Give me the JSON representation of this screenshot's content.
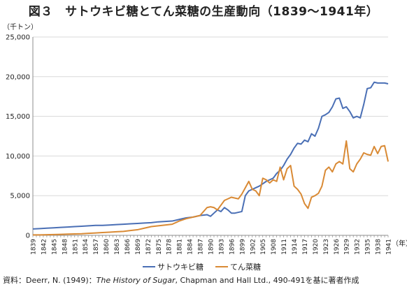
{
  "title": "図３　サトウキビ糖とてん菜糖の生産動向（1839～1941年）",
  "source": {
    "prefix": "資料：Deerr, N. (1949)：",
    "italic": "The History of Sugar",
    "suffix": ", Chapman and Hall Ltd., 490-491を基に著者作成"
  },
  "chart_data": {
    "type": "line",
    "ylabel": "（千トン）",
    "xlabel": "（年）",
    "ylim": [
      0,
      25000
    ],
    "yticks": [
      0,
      5000,
      10000,
      15000,
      20000,
      25000
    ],
    "ytick_labels": [
      "0",
      "5,000",
      "10,000",
      "15,000",
      "20,000",
      "25,000"
    ],
    "xlim": [
      1839,
      1941
    ],
    "xticks": [
      1839,
      1842,
      1845,
      1848,
      1851,
      1854,
      1857,
      1860,
      1863,
      1866,
      1869,
      1872,
      1875,
      1878,
      1881,
      1884,
      1887,
      1890,
      1893,
      1896,
      1899,
      1902,
      1905,
      1908,
      1911,
      1914,
      1917,
      1920,
      1923,
      1926,
      1929,
      1932,
      1935,
      1938,
      1941
    ],
    "grid": true,
    "legend": "bottom",
    "colors": [
      "#4a6fb5",
      "#d98a35"
    ],
    "series": [
      {
        "name": "サトウキビ糖",
        "x": [
          1839,
          1841,
          1843,
          1845,
          1847,
          1849,
          1851,
          1853,
          1855,
          1857,
          1859,
          1861,
          1863,
          1865,
          1867,
          1869,
          1871,
          1873,
          1875,
          1877,
          1879,
          1881,
          1883,
          1885,
          1887,
          1889,
          1890,
          1891,
          1892,
          1893,
          1894,
          1895,
          1896,
          1897,
          1898,
          1899,
          1900,
          1901,
          1902,
          1903,
          1904,
          1905,
          1906,
          1907,
          1908,
          1909,
          1910,
          1911,
          1912,
          1913,
          1914,
          1915,
          1916,
          1917,
          1918,
          1919,
          1920,
          1921,
          1922,
          1923,
          1924,
          1925,
          1926,
          1927,
          1928,
          1929,
          1930,
          1931,
          1932,
          1933,
          1934,
          1935,
          1936,
          1937,
          1938,
          1939,
          1940,
          1941
        ],
        "values": [
          800,
          850,
          900,
          950,
          1000,
          1050,
          1100,
          1150,
          1200,
          1250,
          1250,
          1300,
          1350,
          1400,
          1450,
          1500,
          1550,
          1600,
          1700,
          1750,
          1800,
          2000,
          2200,
          2300,
          2500,
          2600,
          2400,
          2800,
          3200,
          3000,
          3500,
          3200,
          2800,
          2800,
          2900,
          3000,
          5000,
          5600,
          5800,
          6000,
          6200,
          6500,
          6800,
          7000,
          7200,
          7800,
          8200,
          8800,
          9600,
          10200,
          11000,
          11600,
          11500,
          12000,
          11800,
          12800,
          12500,
          13500,
          15000,
          15200,
          15500,
          16200,
          17200,
          17300,
          16000,
          16200,
          15600,
          14800,
          15000,
          14800,
          16500,
          18500,
          18600,
          19300,
          19200,
          19200,
          19200,
          19100
        ]
      },
      {
        "name": "てん菜糖",
        "x": [
          1839,
          1841,
          1843,
          1845,
          1847,
          1849,
          1851,
          1853,
          1855,
          1857,
          1859,
          1861,
          1863,
          1865,
          1867,
          1869,
          1871,
          1873,
          1875,
          1877,
          1879,
          1881,
          1883,
          1885,
          1887,
          1889,
          1890,
          1891,
          1892,
          1893,
          1894,
          1895,
          1896,
          1897,
          1898,
          1899,
          1900,
          1901,
          1902,
          1903,
          1904,
          1905,
          1906,
          1907,
          1908,
          1909,
          1910,
          1911,
          1912,
          1913,
          1914,
          1915,
          1916,
          1917,
          1918,
          1919,
          1920,
          1921,
          1922,
          1923,
          1924,
          1925,
          1926,
          1927,
          1928,
          1929,
          1930,
          1931,
          1932,
          1933,
          1934,
          1935,
          1936,
          1937,
          1938,
          1939,
          1940,
          1941
        ],
        "values": [
          50,
          60,
          80,
          100,
          120,
          150,
          180,
          200,
          250,
          300,
          350,
          400,
          450,
          500,
          600,
          700,
          900,
          1100,
          1200,
          1300,
          1400,
          1800,
          2100,
          2300,
          2500,
          3500,
          3600,
          3500,
          3200,
          3800,
          4400,
          4600,
          4800,
          4700,
          4600,
          5200,
          6000,
          6800,
          5800,
          5600,
          5000,
          7200,
          7000,
          6600,
          7000,
          6800,
          8600,
          7000,
          8400,
          8800,
          6200,
          5800,
          5200,
          4000,
          3400,
          4800,
          5000,
          5300,
          6200,
          8200,
          8600,
          8000,
          9000,
          9300,
          9000,
          11900,
          8400,
          8000,
          9000,
          9600,
          10400,
          10200,
          10100,
          11200,
          10300,
          11200,
          11300,
          9300
        ]
      }
    ]
  }
}
